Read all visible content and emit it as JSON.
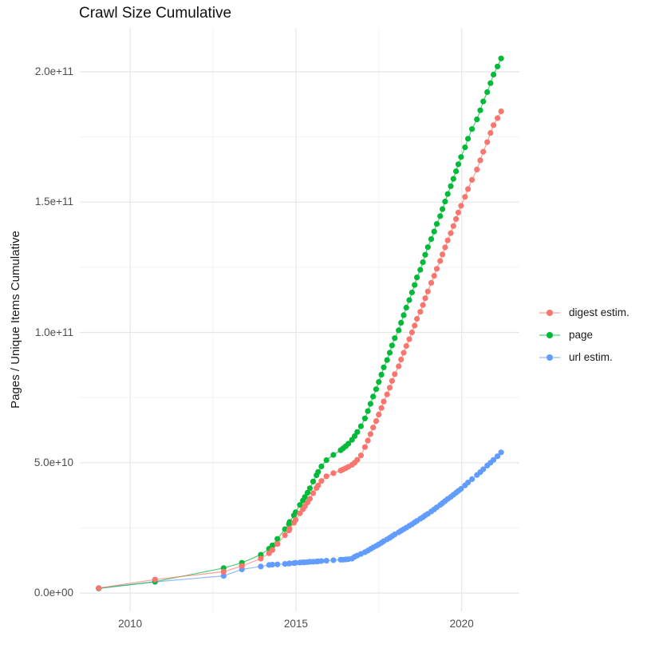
{
  "chart_data": {
    "type": "scatter",
    "title": "Crawl Size Cumulative",
    "ylabel": "Pages / Unique Items Cumulative",
    "xlabel": "",
    "y_unit": "items, billions (1e9)",
    "x_unit": "year",
    "legend_position": "right",
    "grid": true,
    "xlim": [
      2008.48,
      2021.74
    ],
    "ylim": [
      -7,
      216.8
    ],
    "x_ticks": [
      {
        "value": 2010,
        "label": "2010"
      },
      {
        "value": 2015,
        "label": "2015"
      },
      {
        "value": 2020,
        "label": "2020"
      }
    ],
    "y_ticks": [
      {
        "value": 0,
        "label": "0.0e+00"
      },
      {
        "value": 50,
        "label": "5.0e+10"
      },
      {
        "value": 100,
        "label": "1.0e+11"
      },
      {
        "value": 150,
        "label": "1.5e+11"
      },
      {
        "value": 200,
        "label": "2.0e+11"
      }
    ],
    "x_minor_ticks": [
      2012.5,
      2017.5
    ],
    "y_minor_ticks": [
      25,
      75,
      125,
      175
    ],
    "x_years": [
      2009.05,
      2010.75,
      2012.82,
      2013.37,
      2013.94,
      2014.19,
      2014.29,
      2014.44,
      2014.67,
      2014.79,
      2014.81,
      2014.94,
      2014.99,
      2015.12,
      2015.21,
      2015.27,
      2015.35,
      2015.42,
      2015.52,
      2015.62,
      2015.67,
      2015.77,
      2015.92,
      2016.13,
      2016.35,
      2016.42,
      2016.5,
      2016.58,
      2016.69,
      2016.77,
      2016.85,
      2016.96,
      2017.08,
      2017.17,
      2017.25,
      2017.33,
      2017.42,
      2017.5,
      2017.58,
      2017.65,
      2017.75,
      2017.83,
      2017.9,
      2017.98,
      2018.1,
      2018.17,
      2018.25,
      2018.33,
      2018.42,
      2018.5,
      2018.58,
      2018.65,
      2018.75,
      2018.83,
      2018.9,
      2018.98,
      2019.08,
      2019.17,
      2019.25,
      2019.35,
      2019.42,
      2019.5,
      2019.58,
      2019.67,
      2019.75,
      2019.83,
      2019.9,
      2019.98,
      2020.1,
      2020.19,
      2020.31,
      2020.46,
      2020.56,
      2020.65,
      2020.77,
      2020.87,
      2020.96,
      2021.08,
      2021.19
    ],
    "series": [
      {
        "name": "url estim.",
        "color": "#619CFF",
        "values": [
          1.8,
          4.3,
          6.6,
          9.1,
          10.2,
          10.8,
          10.9,
          11.0,
          11.2,
          11.3,
          11.4,
          11.5,
          11.6,
          11.7,
          11.8,
          11.8,
          11.9,
          12.0,
          12.0,
          12.1,
          12.2,
          12.3,
          12.4,
          12.6,
          12.8,
          12.8,
          12.9,
          13.0,
          13.2,
          13.9,
          14.4,
          15.0,
          15.7,
          16.3,
          16.9,
          17.5,
          18.1,
          18.7,
          19.3,
          19.9,
          20.6,
          21.2,
          21.8,
          22.5,
          23.3,
          23.9,
          24.5,
          25.1,
          25.8,
          26.4,
          27.1,
          27.7,
          28.5,
          29.1,
          29.8,
          30.4,
          31.3,
          32.1,
          32.9,
          33.8,
          34.5,
          35.3,
          36.1,
          36.9,
          37.7,
          38.5,
          39.2,
          40.0,
          41.3,
          42.4,
          43.7,
          45.3,
          46.4,
          47.5,
          48.9,
          50.0,
          51.1,
          52.5,
          54.0
        ]
      },
      {
        "name": "page",
        "color": "#00BA38",
        "values": [
          1.8,
          4.4,
          9.6,
          11.6,
          14.7,
          17.0,
          18.3,
          20.8,
          24.5,
          26.5,
          27.3,
          29.8,
          31.0,
          33.8,
          35.5,
          36.8,
          38.5,
          40.2,
          42.8,
          45.2,
          46.5,
          48.6,
          51.0,
          53.0,
          54.8,
          55.5,
          56.3,
          57.3,
          58.8,
          60.2,
          61.8,
          64.0,
          67.0,
          69.8,
          72.6,
          75.4,
          78.2,
          81.0,
          83.8,
          86.6,
          89.4,
          92.2,
          95.0,
          97.8,
          100.8,
          103.7,
          106.6,
          109.5,
          112.4,
          115.3,
          118.2,
          121.1,
          124.0,
          126.9,
          129.8,
          132.7,
          135.8,
          138.7,
          141.6,
          144.6,
          147.3,
          150.2,
          153.1,
          156.1,
          158.9,
          161.8,
          164.5,
          167.3,
          171.0,
          174.3,
          178.0,
          181.7,
          185.2,
          188.6,
          192.2,
          195.6,
          198.9,
          202.0,
          205.1
        ]
      },
      {
        "name": "digest estim.",
        "color": "#F8766D",
        "values": [
          1.9,
          5.2,
          8.2,
          10.4,
          13.2,
          15.3,
          16.5,
          18.8,
          22.2,
          24.0,
          24.7,
          27.0,
          28.1,
          30.6,
          32.2,
          33.3,
          34.8,
          36.2,
          38.3,
          40.3,
          41.3,
          43.0,
          44.8,
          46.0,
          47.0,
          47.4,
          47.9,
          48.4,
          49.2,
          50.0,
          51.1,
          52.8,
          56.0,
          58.5,
          61.0,
          63.5,
          66.0,
          68.5,
          71.0,
          73.5,
          76.2,
          78.8,
          81.4,
          84.0,
          87.0,
          89.6,
          92.2,
          94.8,
          97.4,
          100.0,
          102.6,
          105.2,
          107.9,
          110.5,
          113.1,
          115.7,
          119.0,
          121.7,
          124.4,
          127.4,
          129.9,
          132.6,
          135.3,
          138.1,
          140.8,
          143.5,
          146.0,
          148.6,
          152.0,
          155.0,
          158.5,
          162.5,
          166.0,
          169.3,
          173.0,
          176.5,
          179.5,
          182.2,
          184.8
        ]
      }
    ],
    "legend_order": [
      "digest estim.",
      "page",
      "url estim."
    ],
    "colors": {
      "digest_estim": "#F8766D",
      "page": "#00BA38",
      "url_estim": "#619CFF",
      "grid_major": "#E6E6E6",
      "grid_minor": "#F3F3F3",
      "tick_text": "#4D4D4D"
    }
  }
}
